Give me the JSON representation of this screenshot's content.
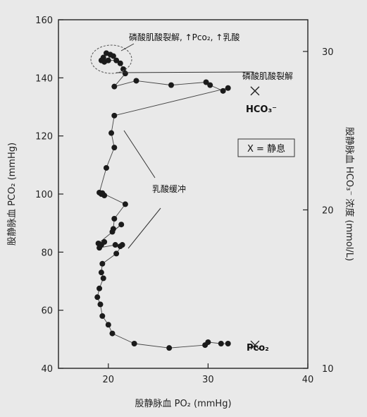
{
  "chart_data": {
    "type": "scatter",
    "xlabel": "股静脉血 PO₂ (mmHg)",
    "ylabel": "股静脉血 PCO₂ (mmHg)",
    "y2label": "股静脉血 HCO₃⁻ 浓度 (mmol/L)",
    "xlim": [
      15,
      40
    ],
    "ylim": [
      40,
      160
    ],
    "y2lim": [
      10,
      32
    ],
    "xticks": [
      20,
      30,
      40
    ],
    "yticks": [
      40,
      60,
      80,
      100,
      120,
      140,
      160
    ],
    "y2ticks": [
      10,
      20,
      30
    ],
    "grid": false,
    "series": [
      {
        "name": "PCO2",
        "points": [
          [
            19.5,
            147
          ],
          [
            19.8,
            148.5
          ],
          [
            20.2,
            148
          ],
          [
            20.5,
            147.5
          ],
          [
            19.3,
            146
          ],
          [
            19.6,
            145.5
          ],
          [
            20.0,
            146
          ],
          [
            20.8,
            146
          ],
          [
            21.2,
            145
          ],
          [
            21.5,
            143
          ],
          [
            21.7,
            141.5
          ],
          [
            20.6,
            137
          ],
          [
            22.8,
            139
          ],
          [
            26.3,
            137.5
          ],
          [
            29.8,
            138.5
          ],
          [
            30.2,
            137.5
          ],
          [
            31.5,
            135.5
          ],
          [
            32.0,
            136.5
          ],
          [
            20.6,
            127
          ],
          [
            20.3,
            121
          ],
          [
            20.6,
            116
          ],
          [
            19.8,
            109
          ],
          [
            19.1,
            100.5
          ],
          [
            19.3,
            100
          ],
          [
            19.6,
            99.5
          ],
          [
            19.4,
            100.3
          ],
          [
            21.7,
            96.5
          ],
          [
            20.6,
            91.5
          ],
          [
            20.5,
            88
          ],
          [
            20.4,
            87
          ],
          [
            21.3,
            89.5
          ],
          [
            19.0,
            83
          ],
          [
            19.3,
            82.5
          ],
          [
            19.6,
            83.5
          ],
          [
            19.1,
            81.5
          ],
          [
            20.7,
            82.5
          ],
          [
            21.2,
            82
          ],
          [
            21.4,
            82.5
          ],
          [
            20.8,
            79.5
          ],
          [
            19.4,
            76
          ],
          [
            19.3,
            73
          ],
          [
            19.5,
            71
          ],
          [
            19.1,
            67.5
          ],
          [
            18.9,
            64.5
          ],
          [
            19.2,
            62
          ],
          [
            19.4,
            58
          ],
          [
            20.0,
            55
          ],
          [
            20.4,
            52
          ],
          [
            22.6,
            48.5
          ],
          [
            26.1,
            47
          ],
          [
            29.7,
            48
          ],
          [
            30.0,
            49
          ],
          [
            31.3,
            48.5
          ],
          [
            32.0,
            48.5
          ]
        ]
      }
    ],
    "markers": [
      {
        "name": "静息 (resting) HCO3",
        "x": 34.7,
        "y": 135.5
      },
      {
        "name": "静息 (resting) Pco2",
        "x": 34.7,
        "y": 48
      }
    ],
    "annotations": {
      "phospho_lactate": "磷酸肌酸裂解, ↑Pco₂, ↑乳酸",
      "phospho": "磷酸肌酸裂解",
      "lactate_buffer": "乳酸缓冲",
      "hco3_label": "HCO₃⁻",
      "pco2_label": "Pco₂"
    },
    "legend": {
      "text": "X = 静息",
      "position": "right-middle"
    }
  }
}
